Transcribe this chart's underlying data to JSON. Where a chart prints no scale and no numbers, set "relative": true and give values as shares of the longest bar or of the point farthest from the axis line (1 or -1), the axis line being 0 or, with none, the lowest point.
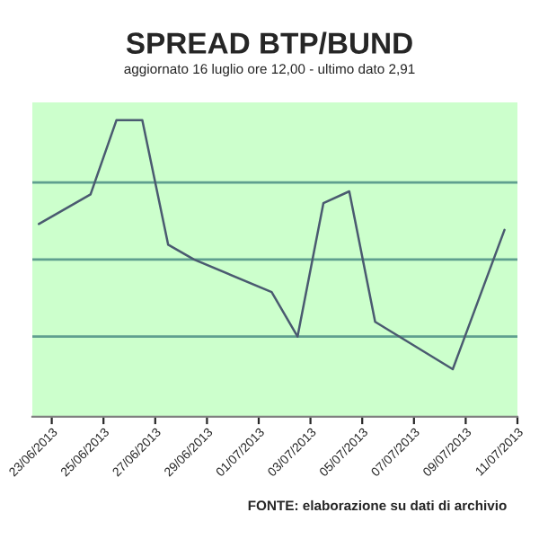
{
  "chart_data": {
    "type": "line",
    "title": "SPREAD BTP/BUND",
    "subtitle": "aggiornato 16 luglio ore 12,00 - ultimo dato 2,91",
    "annotations": [
      "FONTE: elaborazione su dati di archivio"
    ],
    "relative": true,
    "x": [
      "2013-06-22T12:00",
      "2013-06-24T12:00",
      "2013-06-25T12:00",
      "2013-06-26T12:00",
      "2013-06-27T12:00",
      "2013-06-28T12:00",
      "2013-07-01T12:00",
      "2013-07-02T12:00",
      "2013-07-03T12:00",
      "2013-07-04T12:00",
      "2013-07-05T12:00",
      "2013-07-08T12:00",
      "2013-07-10T12:00"
    ],
    "series": [
      {
        "color": "#4a5a70",
        "values": [
          0.65,
          0.75,
          1,
          1,
          0.58,
          0.53,
          0.42,
          0.27,
          0.72,
          0.76,
          0.32,
          0.16,
          0.63
        ]
      }
    ],
    "xlim": [
      "2013-06-22T06:00",
      "2013-07-11T00:00"
    ],
    "xticks": [
      {
        "value": "2013-06-23",
        "label": "23/06/2013"
      },
      {
        "value": "2013-06-25",
        "label": "25/06/2013"
      },
      {
        "value": "2013-06-27",
        "label": "27/06/2013"
      },
      {
        "value": "2013-06-29",
        "label": "29/06/2013"
      },
      {
        "value": "2013-07-01",
        "label": "01/07/2013"
      },
      {
        "value": "2013-07-03",
        "label": "03/07/2013"
      },
      {
        "value": "2013-07-05",
        "label": "05/07/2013"
      },
      {
        "value": "2013-07-07",
        "label": "07/07/2013"
      },
      {
        "value": "2013-07-09",
        "label": "09/07/2013"
      },
      {
        "value": "2013-07-11",
        "label": "11/07/2013"
      }
    ],
    "ref_lines": [
      {
        "axis": "y",
        "value": 0.79,
        "color": "#5f9f8f"
      },
      {
        "axis": "y",
        "value": 0.53,
        "color": "#5f9f8f"
      },
      {
        "axis": "y",
        "value": 0.27,
        "color": "#5f9f8f"
      }
    ],
    "marker": "none",
    "line_style": "solid",
    "legend": false
  }
}
